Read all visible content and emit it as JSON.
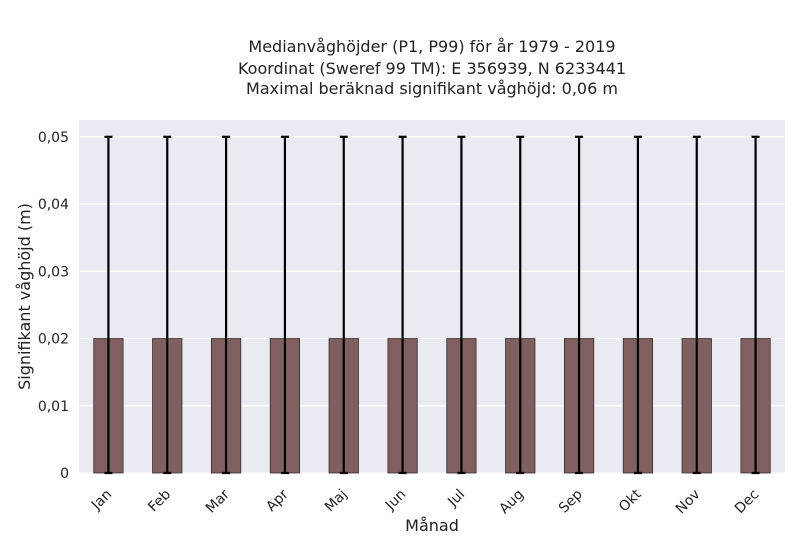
{
  "chart_data": {
    "type": "bar",
    "title_lines": [
      "Medianvåghöjder (P1, P99) för år 1979 - 2019",
      "Koordinat (Sweref 99 TM): E 356939, N 6233441",
      "Maximal beräknad signifikant våghöjd: 0,06 m"
    ],
    "xlabel": "Månad",
    "ylabel": "Signifikant våghöjd (m)",
    "categories": [
      "Jan",
      "Feb",
      "Mar",
      "Apr",
      "Maj",
      "Jun",
      "Jul",
      "Aug",
      "Sep",
      "Okt",
      "Nov",
      "Dec"
    ],
    "values": [
      0.02,
      0.02,
      0.02,
      0.02,
      0.02,
      0.02,
      0.02,
      0.02,
      0.02,
      0.02,
      0.02,
      0.02
    ],
    "error_low": [
      0,
      0,
      0,
      0,
      0,
      0,
      0,
      0,
      0,
      0,
      0,
      0
    ],
    "error_high": [
      0.05,
      0.05,
      0.05,
      0.05,
      0.05,
      0.05,
      0.05,
      0.05,
      0.05,
      0.05,
      0.05,
      0.05
    ],
    "ylim": [
      0,
      0.0525
    ],
    "yticks": [
      0,
      0.01,
      0.02,
      0.03,
      0.04,
      0.05
    ],
    "ytick_labels": [
      "0",
      "0,01",
      "0,02",
      "0,03",
      "0,04",
      "0,05"
    ],
    "grid": true,
    "colors": {
      "bar": "#7f5f5f",
      "bar_edge": "#3a2f2f",
      "error": "#000000",
      "plot_bg": "#eaeaf2",
      "grid": "#ffffff"
    }
  }
}
